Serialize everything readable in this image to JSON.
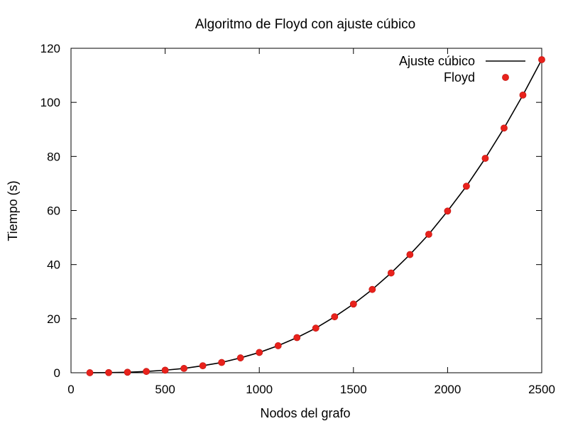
{
  "chart_data": {
    "type": "line+scatter",
    "title": "Algoritmo de Floyd con ajuste cúbico",
    "xlabel": "Nodos del grafo",
    "ylabel": "Tiempo (s)",
    "xlim": [
      0,
      2500
    ],
    "ylim": [
      0,
      120
    ],
    "xticks": [
      0,
      500,
      1000,
      1500,
      2000,
      2500
    ],
    "yticks": [
      0,
      20,
      40,
      60,
      80,
      100,
      120
    ],
    "grid": false,
    "legend_position": "top-right",
    "series": [
      {
        "name": "Ajuste cúbico",
        "kind": "line",
        "color": "#000000",
        "x": [
          100,
          200,
          300,
          400,
          500,
          600,
          700,
          800,
          900,
          1000,
          1100,
          1200,
          1300,
          1400,
          1500,
          1600,
          1700,
          1800,
          1900,
          2000,
          2100,
          2200,
          2300,
          2400,
          2500
        ],
        "y": [
          0.01,
          0.06,
          0.2,
          0.48,
          0.95,
          1.6,
          2.6,
          3.8,
          5.5,
          7.5,
          10.0,
          13.0,
          16.5,
          20.7,
          25.4,
          30.8,
          36.9,
          43.7,
          51.2,
          59.8,
          69.0,
          79.3,
          90.5,
          102.7,
          115.8
        ]
      },
      {
        "name": "Floyd",
        "kind": "scatter",
        "color": "#e8221c",
        "x": [
          100,
          200,
          300,
          400,
          500,
          600,
          700,
          800,
          900,
          1000,
          1100,
          1200,
          1300,
          1400,
          1500,
          1600,
          1700,
          1800,
          1900,
          2000,
          2100,
          2200,
          2300,
          2400,
          2500
        ],
        "y": [
          0.01,
          0.06,
          0.2,
          0.48,
          0.95,
          1.6,
          2.6,
          3.8,
          5.5,
          7.5,
          10.0,
          13.0,
          16.5,
          20.7,
          25.4,
          30.8,
          36.9,
          43.7,
          51.2,
          59.8,
          69.0,
          79.3,
          90.5,
          102.7,
          115.8
        ]
      }
    ]
  }
}
